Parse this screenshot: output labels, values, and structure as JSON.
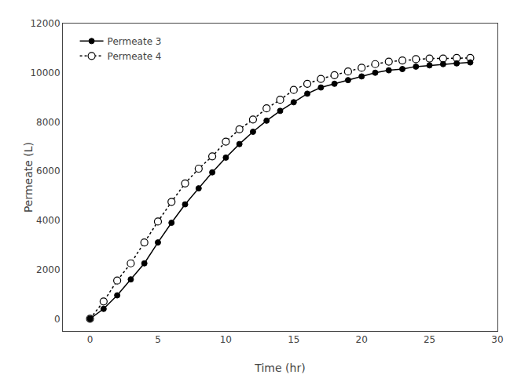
{
  "chart_data": {
    "type": "line",
    "xlabel": "Time (hr)",
    "ylabel": "Permeate (L)",
    "x": [
      0,
      1,
      2,
      3,
      4,
      5,
      6,
      7,
      8,
      9,
      10,
      11,
      12,
      13,
      14,
      15,
      16,
      17,
      18,
      19,
      20,
      21,
      22,
      23,
      24,
      25,
      26,
      27,
      28
    ],
    "series": [
      {
        "name": "Permeate 3",
        "color": "#000000",
        "line_style": "solid",
        "marker": "filled circle",
        "values": [
          0,
          400,
          950,
          1600,
          2250,
          3100,
          3900,
          4650,
          5300,
          5950,
          6550,
          7100,
          7600,
          8050,
          8450,
          8800,
          9150,
          9400,
          9550,
          9700,
          9850,
          10000,
          10100,
          10150,
          10250,
          10300,
          10350,
          10380,
          10420
        ]
      },
      {
        "name": "Permeate 4",
        "color": "#000000",
        "line_style": "dotted",
        "marker": "open circle",
        "values": [
          0,
          700,
          1550,
          2250,
          3100,
          3950,
          4750,
          5500,
          6100,
          6600,
          7200,
          7700,
          8100,
          8550,
          8900,
          9300,
          9550,
          9750,
          9900,
          10050,
          10200,
          10350,
          10450,
          10500,
          10550,
          10580,
          10580,
          10600,
          10600
        ]
      }
    ],
    "xlim": [
      -2,
      30
    ],
    "ylim": [
      -500,
      12000
    ],
    "xticks": [
      0,
      5,
      10,
      15,
      20,
      25,
      30
    ],
    "yticks": [
      0,
      2000,
      4000,
      6000,
      8000,
      10000,
      12000
    ],
    "grid": false,
    "legend": "upper left"
  }
}
